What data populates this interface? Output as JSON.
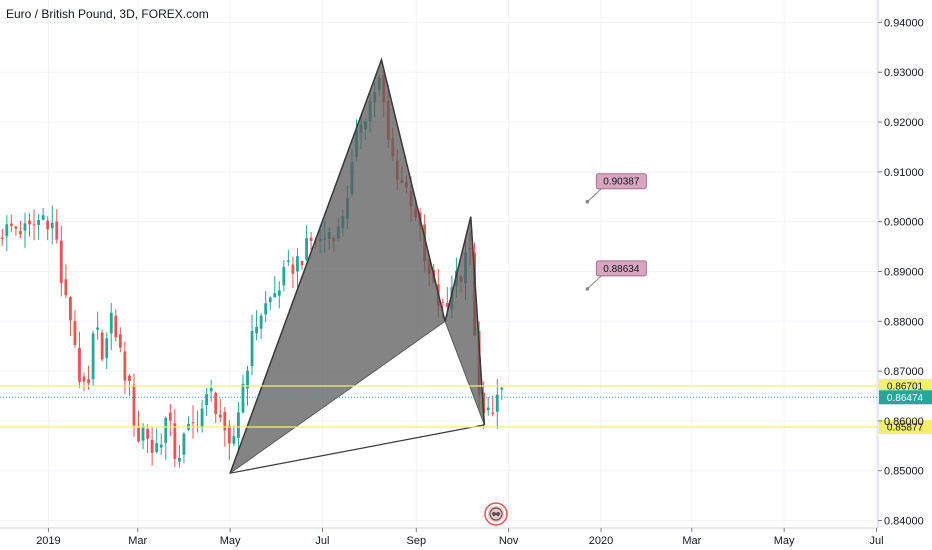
{
  "chart_data": {
    "type": "candlestick",
    "title": "Euro / British Pound, 3D, FOREX.com",
    "ylim": [
      0.8385,
      0.9445
    ],
    "y_ticks": [
      0.84,
      0.85,
      0.86,
      0.87,
      0.88,
      0.89,
      0.9,
      0.91,
      0.92,
      0.93,
      0.94
    ],
    "y_tick_labels": [
      "0.84000",
      "0.85000",
      "0.86000",
      "0.87000",
      "0.88000",
      "0.89000",
      "0.90000",
      "0.91000",
      "0.92000",
      "0.93000",
      "0.94000"
    ],
    "x_ticks": [
      {
        "label": "2019",
        "date": "2019-01-01"
      },
      {
        "label": "Mar",
        "date": "2019-03-01"
      },
      {
        "label": "May",
        "date": "2019-05-01"
      },
      {
        "label": "Jul",
        "date": "2019-07-01"
      },
      {
        "label": "Sep",
        "date": "2019-09-01"
      },
      {
        "label": "Nov",
        "date": "2019-11-01"
      },
      {
        "label": "2020",
        "date": "2020-01-01"
      },
      {
        "label": "Mar",
        "date": "2020-03-01"
      },
      {
        "label": "May",
        "date": "2020-05-01"
      },
      {
        "label": "Jul",
        "date": "2020-07-01"
      }
    ],
    "xlim": [
      "2018-11-30",
      "2020-07-02"
    ],
    "grid": true,
    "colors": {
      "up": "#26a69a",
      "down": "#ef5350",
      "pattern": "#5b5b5b",
      "hline": "#f5f069",
      "current": "#26a69a",
      "callout": "#d8a6c1"
    },
    "price_path": [
      [
        "2018-11-30",
        0.8975
      ],
      [
        "2018-12-10",
        0.899
      ],
      [
        "2018-12-20",
        0.898
      ],
      [
        "2018-12-31",
        0.9015
      ],
      [
        "2019-01-07",
        0.8985
      ],
      [
        "2019-01-12",
        0.8855
      ],
      [
        "2019-01-18",
        0.88
      ],
      [
        "2019-01-23",
        0.869
      ],
      [
        "2019-01-28",
        0.8635
      ],
      [
        "2019-02-02",
        0.879
      ],
      [
        "2019-02-08",
        0.8735
      ],
      [
        "2019-02-14",
        0.881
      ],
      [
        "2019-02-20",
        0.872
      ],
      [
        "2019-02-26",
        0.865
      ],
      [
        "2019-03-02",
        0.856
      ],
      [
        "2019-03-07",
        0.859
      ],
      [
        "2019-03-12",
        0.854
      ],
      [
        "2019-03-17",
        0.856
      ],
      [
        "2019-03-22",
        0.861
      ],
      [
        "2019-03-28",
        0.852
      ],
      [
        "2019-04-03",
        0.857
      ],
      [
        "2019-04-08",
        0.859
      ],
      [
        "2019-04-14",
        0.8625
      ],
      [
        "2019-04-20",
        0.8655
      ],
      [
        "2019-04-26",
        0.861
      ],
      [
        "2019-05-01",
        0.8525
      ],
      [
        "2019-05-05",
        0.857
      ],
      [
        "2019-05-10",
        0.866
      ],
      [
        "2019-05-16",
        0.875
      ],
      [
        "2019-05-21",
        0.881
      ],
      [
        "2019-05-27",
        0.8835
      ],
      [
        "2019-06-02",
        0.886
      ],
      [
        "2019-06-08",
        0.8895
      ],
      [
        "2019-06-14",
        0.8915
      ],
      [
        "2019-06-20",
        0.8935
      ],
      [
        "2019-06-26",
        0.8965
      ],
      [
        "2019-07-02",
        0.896
      ],
      [
        "2019-07-08",
        0.8985
      ],
      [
        "2019-07-13",
        0.898
      ],
      [
        "2019-07-18",
        0.9045
      ],
      [
        "2019-07-22",
        0.9105
      ],
      [
        "2019-07-27",
        0.92
      ],
      [
        "2019-08-01",
        0.9225
      ],
      [
        "2019-08-06",
        0.9265
      ],
      [
        "2019-08-10",
        0.9285
      ],
      [
        "2019-08-14",
        0.917
      ],
      [
        "2019-08-19",
        0.9115
      ],
      [
        "2019-08-24",
        0.908
      ],
      [
        "2019-08-29",
        0.9055
      ],
      [
        "2019-09-03",
        0.901
      ],
      [
        "2019-09-08",
        0.8915
      ],
      [
        "2019-09-13",
        0.887
      ],
      [
        "2019-09-18",
        0.883
      ],
      [
        "2019-09-22",
        0.8815
      ],
      [
        "2019-09-27",
        0.8895
      ],
      [
        "2019-10-02",
        0.89
      ],
      [
        "2019-10-07",
        0.8975
      ],
      [
        "2019-10-11",
        0.8785
      ],
      [
        "2019-10-14",
        0.8635
      ],
      [
        "2019-10-18",
        0.86
      ],
      [
        "2019-10-22",
        0.863
      ],
      [
        "2019-10-26",
        0.8645
      ],
      [
        "2019-10-28",
        0.8647
      ]
    ],
    "pattern_points": [
      {
        "date": "2019-05-01",
        "price": 0.8495
      },
      {
        "date": "2019-08-09",
        "price": 0.9325
      },
      {
        "date": "2019-09-20",
        "price": 0.88
      },
      {
        "date": "2019-10-07",
        "price": 0.901
      },
      {
        "date": "2019-10-16",
        "price": 0.8592
      }
    ],
    "horizontal_levels": [
      {
        "price": 0.86701,
        "label": "0.86701"
      },
      {
        "price": 0.85877,
        "label": "0.85877"
      }
    ],
    "current_price": {
      "price": 0.86474,
      "label": "0.86474"
    },
    "callouts": [
      {
        "label": "0.90387",
        "date": "2019-12-23",
        "price": 0.904
      },
      {
        "label": "0.88634",
        "date": "2019-12-23",
        "price": 0.8865
      }
    ]
  }
}
